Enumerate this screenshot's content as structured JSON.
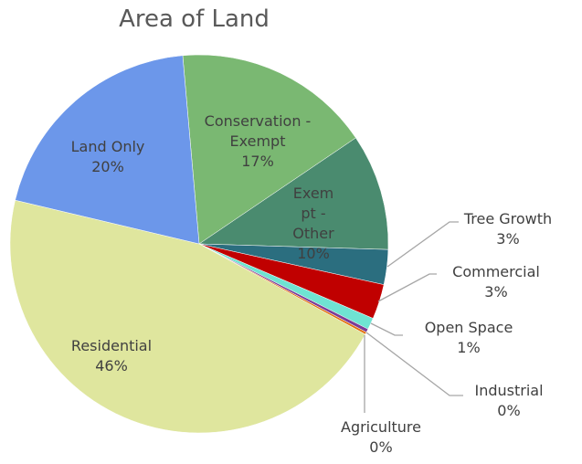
{
  "chart_data": {
    "type": "pie",
    "title": "Area of Land",
    "categories": [
      "Conservation - Exempt",
      "Exempt - Other",
      "Tree Growth",
      "Commercial",
      "Open Space",
      "Industrial",
      "Agriculture",
      "Residential",
      "Land Only"
    ],
    "values": [
      17,
      10,
      3,
      3,
      1,
      0.3,
      0.2,
      46,
      20
    ],
    "value_labels": [
      "17%",
      "10%",
      "3%",
      "3%",
      "1%",
      "0%",
      "0%",
      "46%",
      "20%"
    ],
    "colors": [
      "#7ab872",
      "#4a8b6f",
      "#2b6e7f",
      "#c00000",
      "#6fe3d2",
      "#7b3a96",
      "#e3700e",
      "#dfe69e",
      "#6c97ea"
    ]
  }
}
